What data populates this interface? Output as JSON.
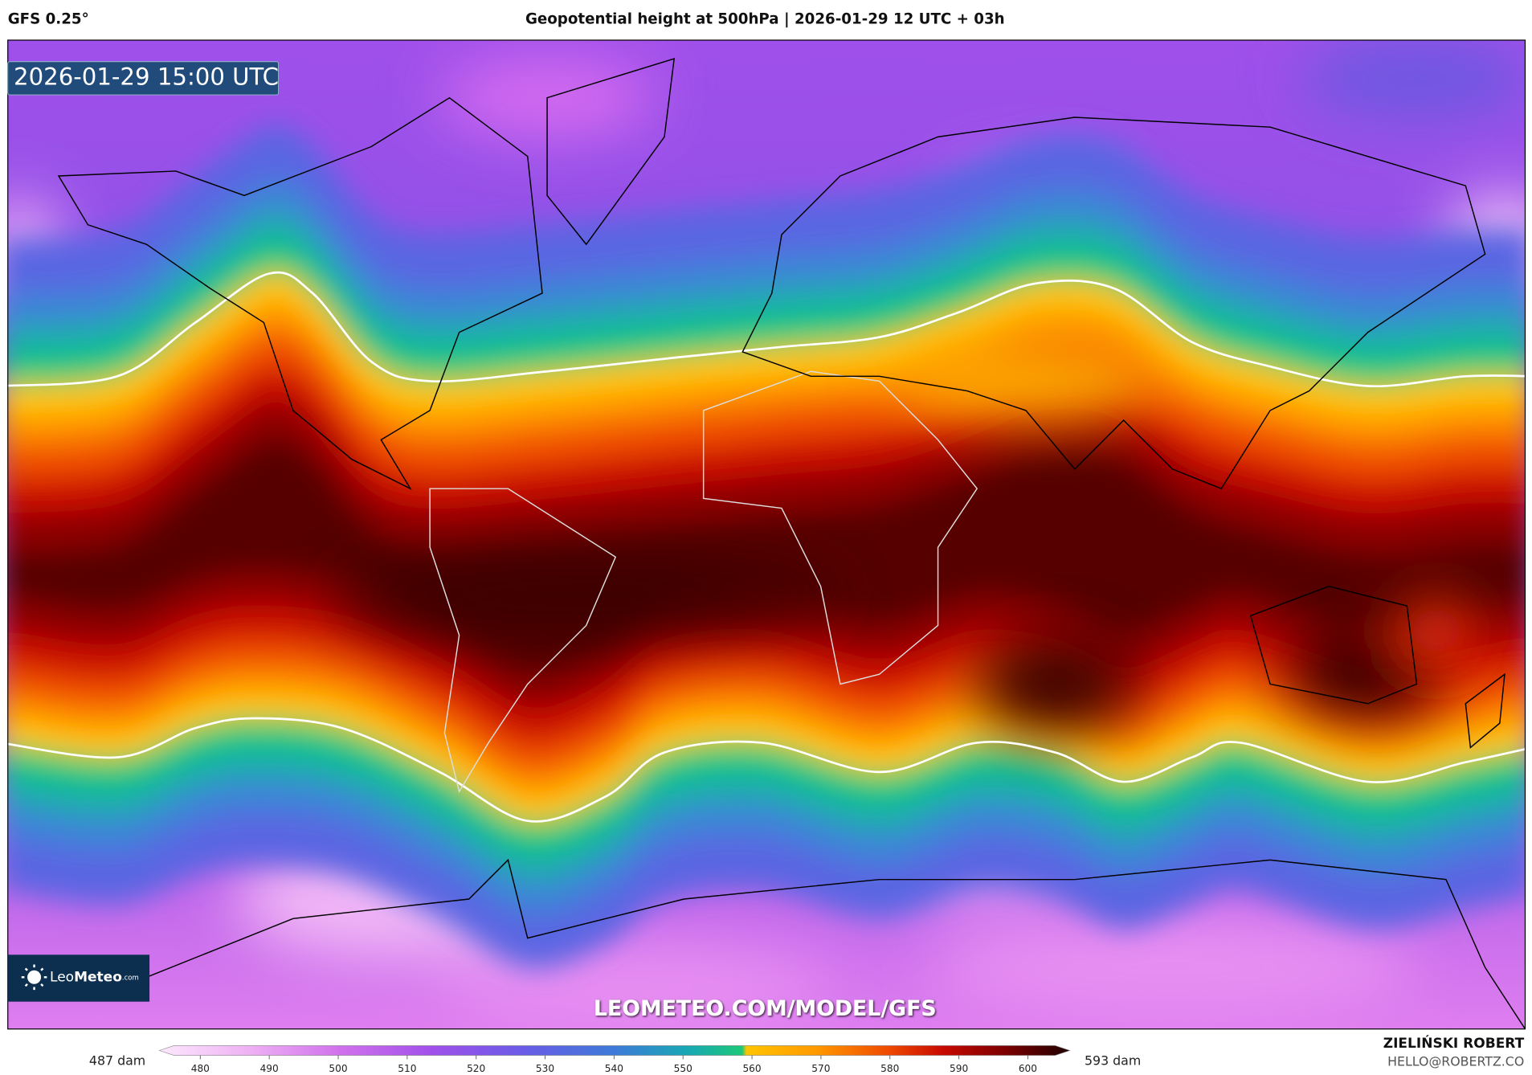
{
  "header": {
    "model": "GFS 0.25°",
    "title": "Geopotential height at 500hPa | 2026-01-29 12 UTC + 03h"
  },
  "map": {
    "valid_time": "2026-01-29 15:00 UTC",
    "logo": {
      "brand_light": "Leo",
      "brand_bold": "Meteo",
      "suffix": ".com"
    },
    "watermark": "LEOMETEO.COM/MODEL/GFS"
  },
  "colorbar": {
    "min_label": "487 dam",
    "max_label": "593 dam",
    "ticks": [
      480,
      490,
      500,
      510,
      520,
      530,
      540,
      550,
      560,
      570,
      580,
      590,
      600
    ]
  },
  "credit": {
    "author": "ZIELIŃSKI ROBERT",
    "email": "HELLO@ROBERTZ.CO"
  }
}
